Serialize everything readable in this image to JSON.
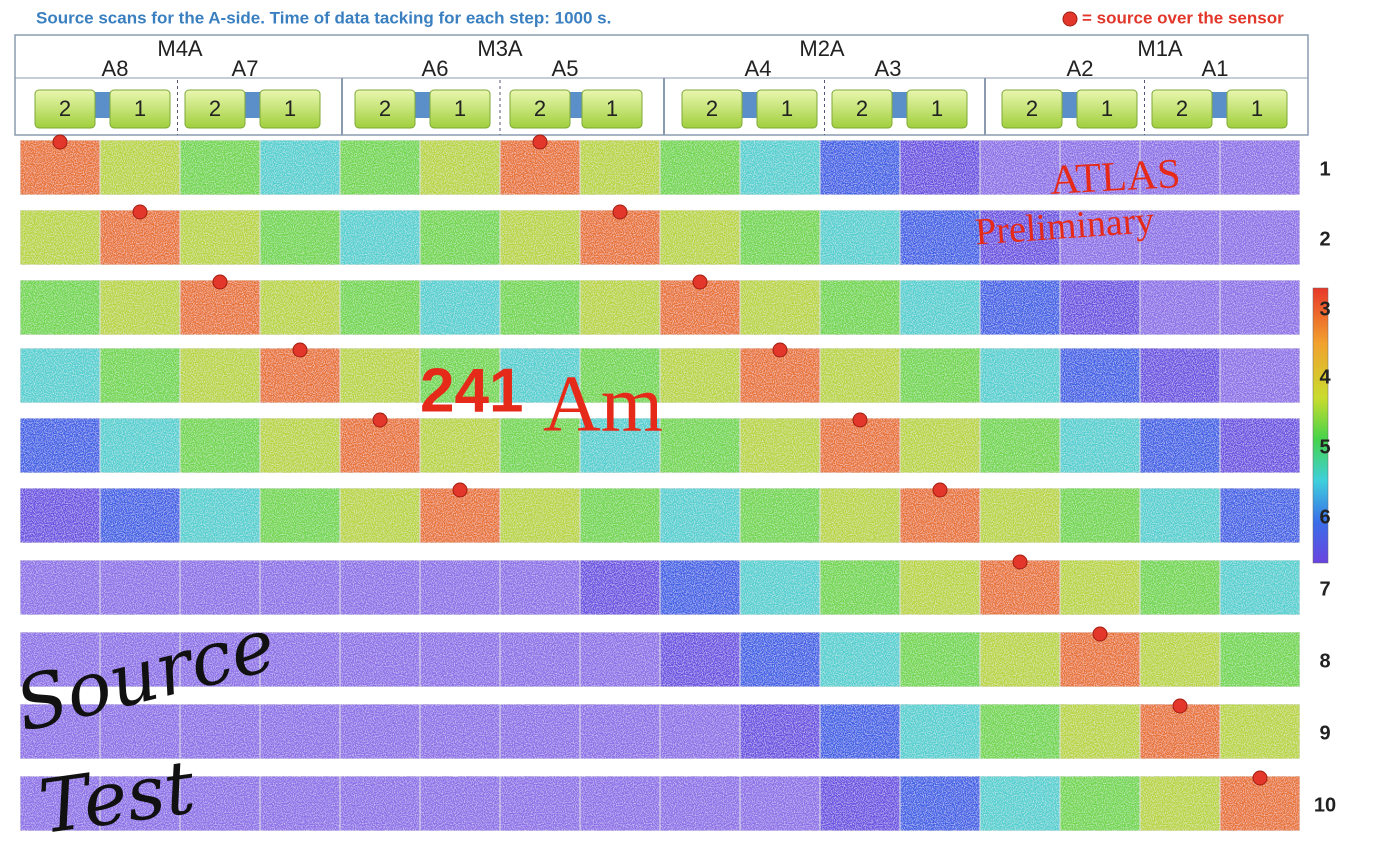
{
  "header": {
    "title": "Source scans for the A-side. Time of data tacking for each step: 1000 s.",
    "legend": "= source over the sensor"
  },
  "modules": [
    {
      "label": "M4A",
      "sensors": [
        {
          "label": "A8",
          "chips": [
            "2",
            "1"
          ]
        },
        {
          "label": "A7",
          "chips": [
            "2",
            "1"
          ]
        }
      ]
    },
    {
      "label": "M3A",
      "sensors": [
        {
          "label": "A6",
          "chips": [
            "2",
            "1"
          ]
        },
        {
          "label": "A5",
          "chips": [
            "2",
            "1"
          ]
        }
      ]
    },
    {
      "label": "M2A",
      "sensors": [
        {
          "label": "A4",
          "chips": [
            "2",
            "1"
          ]
        },
        {
          "label": "A3",
          "chips": [
            "2",
            "1"
          ]
        }
      ]
    },
    {
      "label": "M1A",
      "sensors": [
        {
          "label": "A2",
          "chips": [
            "2",
            "1"
          ]
        },
        {
          "label": "A1",
          "chips": [
            "2",
            "1"
          ]
        }
      ]
    }
  ],
  "rows": [
    "1",
    "2",
    "3",
    "4",
    "5",
    "6",
    "7",
    "8",
    "9",
    "10"
  ],
  "annotations": {
    "atlas": "ATLAS",
    "preliminary": "Preliminary",
    "isotope": {
      "mass": "241",
      "element": "Am"
    },
    "source": "Source",
    "test": "Test"
  }
}
